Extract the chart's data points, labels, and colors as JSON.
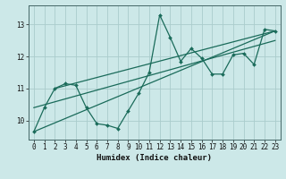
{
  "xlabel": "Humidex (Indice chaleur)",
  "xlim": [
    -0.5,
    23.5
  ],
  "ylim": [
    9.4,
    13.6
  ],
  "yticks": [
    10,
    11,
    12,
    13
  ],
  "xticks": [
    0,
    1,
    2,
    3,
    4,
    5,
    6,
    7,
    8,
    9,
    10,
    11,
    12,
    13,
    14,
    15,
    16,
    17,
    18,
    19,
    20,
    21,
    22,
    23
  ],
  "bg_color": "#cce8e8",
  "line_color": "#1a6b5a",
  "grid_color": "#aacccc",
  "main_x": [
    0,
    1,
    2,
    3,
    4,
    5,
    6,
    7,
    8,
    9,
    10,
    11,
    12,
    13,
    14,
    15,
    16,
    17,
    18,
    19,
    20,
    21,
    22,
    23
  ],
  "main_y": [
    9.65,
    10.4,
    11.0,
    11.15,
    11.1,
    10.4,
    9.9,
    9.85,
    9.75,
    10.3,
    10.85,
    11.5,
    13.3,
    12.6,
    11.85,
    12.25,
    11.95,
    11.45,
    11.45,
    12.05,
    12.1,
    11.75,
    12.85,
    12.8
  ],
  "trend1_x": [
    0,
    23
  ],
  "trend1_y": [
    9.65,
    12.8
  ],
  "trend2_x": [
    2,
    23
  ],
  "trend2_y": [
    11.0,
    12.8
  ],
  "trend3_x": [
    0,
    23
  ],
  "trend3_y": [
    10.4,
    12.5
  ]
}
